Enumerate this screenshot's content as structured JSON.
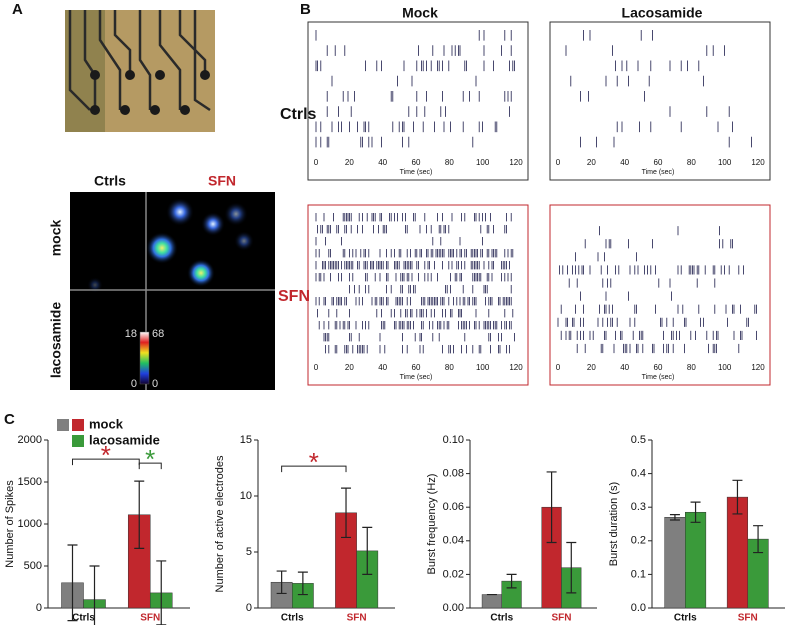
{
  "panel_labels": [
    "A",
    "B",
    "C"
  ],
  "panel_a": {
    "col_labels": [
      "Ctrls",
      "SFN"
    ],
    "row_labels": [
      "mock",
      "lacosamide"
    ],
    "scale_labels": [
      "18",
      "68",
      "0",
      "0"
    ]
  },
  "panel_b": {
    "col_labels": [
      "Mock",
      "Lacosamide"
    ],
    "row_labels": [
      "Ctrls",
      "SFN"
    ],
    "xticks": [
      0,
      20,
      40,
      60,
      80,
      100,
      120
    ],
    "xlabel": "Time (sec)"
  },
  "chart_data": [
    {
      "type": "bar",
      "ylabel": "Number of Spikes",
      "categories": [
        "Ctrls",
        "SFN"
      ],
      "category_colors": [
        "#111111",
        "#c1272d"
      ],
      "series": [
        {
          "name": "mock",
          "colors": [
            "#7f7f7f",
            "#c1272d"
          ],
          "values": [
            300,
            1110
          ],
          "errors": [
            450,
            400
          ]
        },
        {
          "name": "lacosamide",
          "colors": [
            "#3a9a3a",
            "#3a9a3a"
          ],
          "values": [
            100,
            180
          ],
          "errors": [
            400,
            380
          ]
        }
      ],
      "ylim": [
        0,
        2000
      ],
      "yticks": [
        0,
        500,
        1000,
        1500,
        2000
      ],
      "significance": [
        {
          "label": "*",
          "color": "#c1272d",
          "bars": [
            [
              0,
              0
            ],
            [
              0,
              1
            ]
          ]
        },
        {
          "label": "*",
          "color": "#3a9a3a",
          "bars": [
            [
              0,
              1
            ],
            [
              1,
              1
            ]
          ]
        }
      ]
    },
    {
      "type": "bar",
      "ylabel": "Number of active electrodes",
      "categories": [
        "Ctrls",
        "SFN"
      ],
      "category_colors": [
        "#111111",
        "#c1272d"
      ],
      "series": [
        {
          "colors": [
            "#7f7f7f",
            "#c1272d"
          ],
          "values": [
            2.3,
            8.5
          ],
          "errors": [
            1.0,
            2.2
          ]
        },
        {
          "colors": [
            "#3a9a3a",
            "#3a9a3a"
          ],
          "values": [
            2.2,
            5.1
          ],
          "errors": [
            1.0,
            2.1
          ]
        }
      ],
      "ylim": [
        0,
        15
      ],
      "yticks": [
        0,
        5,
        10,
        15
      ],
      "significance": [
        {
          "label": "*",
          "color": "#c1272d",
          "bars": [
            [
              0,
              0
            ],
            [
              0,
              1
            ]
          ]
        }
      ]
    },
    {
      "type": "bar",
      "ylabel": "Burst frequency (Hz)",
      "categories": [
        "Ctrls",
        "SFN"
      ],
      "category_colors": [
        "#111111",
        "#c1272d"
      ],
      "series": [
        {
          "colors": [
            "#7f7f7f",
            "#c1272d"
          ],
          "values": [
            0.008,
            0.06
          ],
          "errors": [
            0,
            0.021
          ]
        },
        {
          "colors": [
            "#3a9a3a",
            "#3a9a3a"
          ],
          "values": [
            0.016,
            0.024
          ],
          "errors": [
            0.004,
            0.015
          ]
        }
      ],
      "ylim": [
        0,
        0.1
      ],
      "yticks": [
        {
          "value": 0,
          "label": "0.00"
        },
        {
          "value": 0.02,
          "label": "0.02"
        },
        {
          "value": 0.04,
          "label": "0.04"
        },
        {
          "value": 0.06,
          "label": "0.06"
        },
        {
          "value": 0.08,
          "label": "0.08"
        },
        {
          "value": 0.1,
          "label": "0.10"
        }
      ]
    },
    {
      "type": "bar",
      "ylabel": "Burst duration  (s)",
      "categories": [
        "Ctrls",
        "SFN"
      ],
      "category_colors": [
        "#111111",
        "#c1272d"
      ],
      "series": [
        {
          "colors": [
            "#7f7f7f",
            "#c1272d"
          ],
          "values": [
            0.27,
            0.33
          ],
          "errors": [
            0.008,
            0.05
          ]
        },
        {
          "colors": [
            "#3a9a3a",
            "#3a9a3a"
          ],
          "values": [
            0.285,
            0.205
          ],
          "errors": [
            0.03,
            0.04
          ]
        }
      ],
      "ylim": [
        0,
        0.5
      ],
      "yticks": [
        {
          "value": 0,
          "label": "0.0"
        },
        0.1,
        0.2,
        0.3,
        0.4,
        0.5
      ]
    }
  ]
}
